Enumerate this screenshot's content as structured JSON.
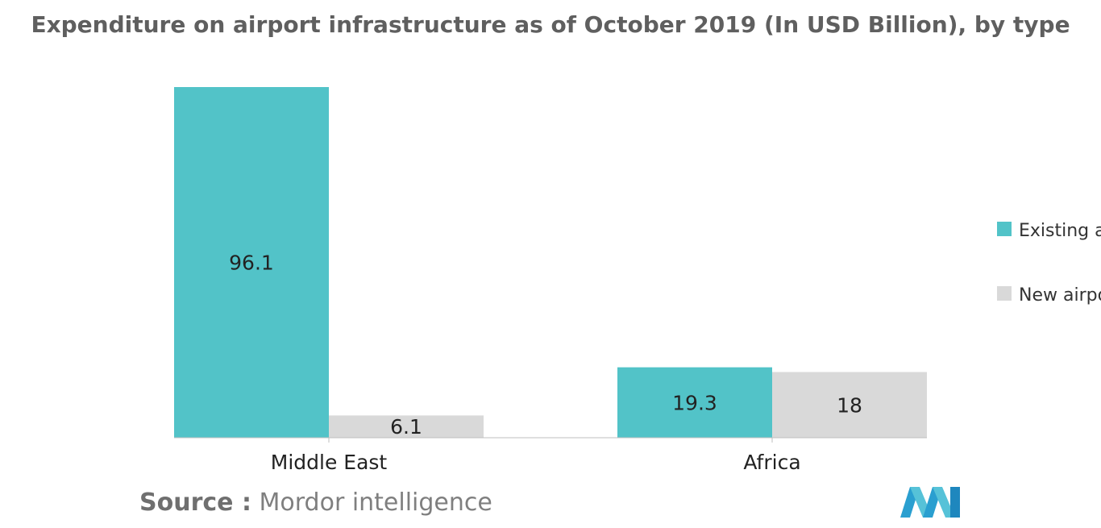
{
  "chart_data": {
    "type": "bar",
    "title": "Expenditure on airport infrastructure as of October 2019 (In USD Billion), by type",
    "categories": [
      "Middle East",
      "Africa"
    ],
    "series": [
      {
        "name": "Existing ai",
        "values": [
          96.1,
          19.3
        ],
        "color": "#52c3c8"
      },
      {
        "name": "New airpo",
        "values": [
          6.1,
          18
        ],
        "color": "#d9d9d9"
      }
    ],
    "value_labels": [
      [
        "96.1",
        "19.3"
      ],
      [
        "6.1",
        "18"
      ]
    ],
    "ylim": [
      0,
      100
    ],
    "grid": false,
    "legend_position": "right"
  },
  "source": {
    "label": "Source :",
    "text": "Mordor intelligence"
  },
  "colors": {
    "title": "#5f5f5f",
    "axis": "#bfbfbf",
    "text": "#222222",
    "logo": "#4db3d6"
  },
  "logo_icon": "mordor-intelligence-logo-icon"
}
